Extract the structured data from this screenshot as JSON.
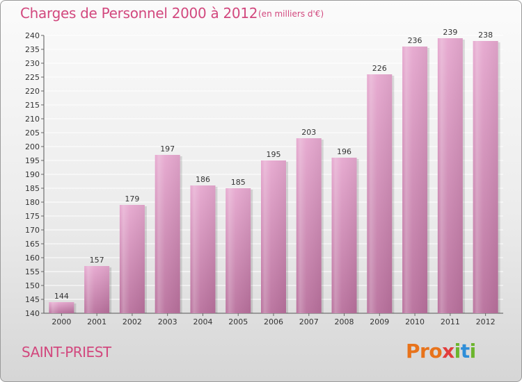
{
  "title": "Charges de Personnel 2000 à 2012",
  "subtitle": "(en milliers d'€)",
  "footer_label": "SAINT-PRIEST",
  "logo": {
    "text": "Proxiti",
    "colors": [
      "#e8731b",
      "#2f8ed8",
      "#6cb52d",
      "#e23d3d"
    ]
  },
  "colors": {
    "bar": "#dd9cc4",
    "bar_dark": "#b56a97",
    "title": "#d2487e",
    "grid": "#ffffff"
  },
  "chart_data": {
    "type": "bar",
    "categories": [
      "2000",
      "2001",
      "2002",
      "2003",
      "2004",
      "2005",
      "2006",
      "2007",
      "2008",
      "2009",
      "2010",
      "2011",
      "2012"
    ],
    "values": [
      144,
      157,
      179,
      197,
      186,
      185,
      195,
      203,
      196,
      226,
      236,
      239,
      238
    ],
    "title": "Charges de Personnel 2000 à 2012",
    "subtitle": "(en milliers d'€)",
    "xlabel": "",
    "ylabel": "",
    "ylim": [
      140,
      240
    ],
    "ytick_step": 5,
    "grid": true,
    "legend": "none"
  }
}
